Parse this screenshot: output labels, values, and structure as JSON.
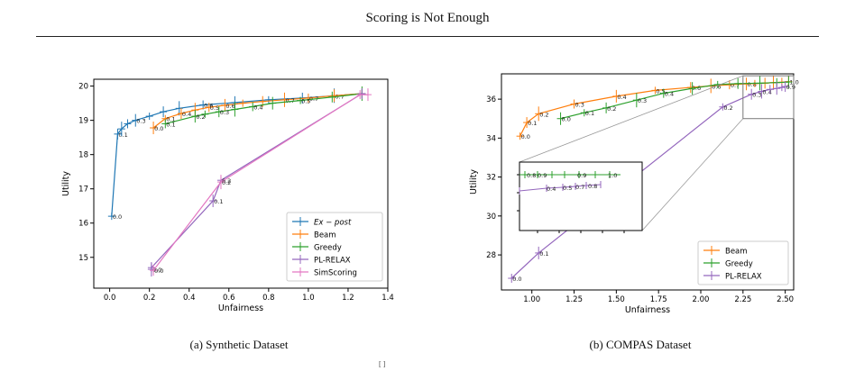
{
  "header": {
    "title": "Scoring is Not Enough"
  },
  "footer_fragment": "[        ]",
  "chart_data": [
    {
      "id": "synthetic",
      "type": "line",
      "caption": "(a) Synthetic Dataset",
      "xlabel": "Unfairness",
      "ylabel": "Utility",
      "xlim": [
        -0.08,
        1.4
      ],
      "ylim": [
        14.1,
        20.2
      ],
      "xticks": [
        0.0,
        0.2,
        0.4,
        0.6,
        0.8,
        1.0,
        1.2,
        1.4
      ],
      "yticks": [
        15,
        16,
        17,
        18,
        19,
        20
      ],
      "grid": false,
      "legend_position": "lower-right",
      "series": [
        {
          "name": "Ex − post",
          "color": "#1f77b4",
          "x": [
            0.01,
            0.04,
            0.06,
            0.09,
            0.13,
            0.2,
            0.27,
            0.35,
            0.47,
            0.63,
            0.8,
            0.97,
            1.13,
            1.27
          ],
          "y": [
            16.2,
            18.6,
            18.75,
            18.9,
            19.0,
            19.12,
            19.25,
            19.35,
            19.45,
            19.52,
            19.6,
            19.65,
            19.72,
            19.78
          ],
          "labels": [
            "0.0",
            "0.1",
            "",
            "",
            "0.3",
            "",
            "",
            "",
            "0.6",
            "",
            "",
            "",
            "0.7",
            ""
          ]
        },
        {
          "name": "Beam",
          "color": "#ff7f0e",
          "x": [
            0.22,
            0.28,
            0.36,
            0.43,
            0.5,
            0.58,
            0.67,
            0.77,
            0.88,
            1.0,
            1.13,
            1.27
          ],
          "y": [
            18.78,
            19.05,
            19.2,
            19.3,
            19.38,
            19.44,
            19.5,
            19.55,
            19.6,
            19.65,
            19.72,
            19.78
          ],
          "labels": [
            "0.0",
            "0.1",
            "0.4",
            "",
            "0.5",
            "0.6",
            "",
            "",
            "0.7",
            "0.7",
            "",
            ""
          ]
        },
        {
          "name": "Greedy",
          "color": "#2ca02c",
          "x": [
            0.28,
            0.43,
            0.48,
            0.55,
            0.63,
            0.72,
            0.82,
            0.96,
            1.12,
            1.27
          ],
          "y": [
            18.9,
            19.12,
            19.18,
            19.25,
            19.32,
            19.4,
            19.5,
            19.58,
            19.68,
            19.78
          ],
          "labels": [
            "0.1",
            "0.2",
            "",
            "0.3",
            "",
            "0.4",
            "",
            "0.5",
            "",
            ""
          ]
        },
        {
          "name": "PL-RELAX",
          "color": "#9467bd",
          "x": [
            0.21,
            0.21,
            0.52,
            0.56,
            1.27
          ],
          "y": [
            14.65,
            14.7,
            16.65,
            17.25,
            19.78
          ],
          "labels": [
            "0.0",
            "",
            "0.1",
            "0.2",
            ""
          ]
        },
        {
          "name": "SimScoring",
          "color": "#e377c2",
          "x": [
            0.22,
            0.56,
            1.26,
            1.3
          ],
          "y": [
            14.62,
            17.2,
            19.75,
            19.75
          ],
          "labels": [
            "0.0",
            "0.2",
            "",
            ""
          ]
        }
      ]
    },
    {
      "id": "compas",
      "type": "line",
      "caption": "(b) COMPAS Dataset",
      "xlabel": "Unfairness",
      "ylabel": "Utility",
      "xlim": [
        0.82,
        2.55
      ],
      "ylim": [
        26.2,
        37.3
      ],
      "xticks": [
        1.0,
        1.25,
        1.5,
        1.75,
        2.0,
        2.25,
        2.5
      ],
      "xtick_labels": [
        "1.00",
        "1.25",
        "1.50",
        "1.75",
        "2.00",
        "2.25",
        "2.50"
      ],
      "yticks": [
        28,
        30,
        32,
        34,
        36
      ],
      "grid": false,
      "legend_position": "lower-right",
      "series": [
        {
          "name": "Beam",
          "color": "#ff7f0e",
          "x": [
            0.93,
            0.97,
            1.04,
            1.25,
            1.5,
            1.73,
            1.94,
            2.06,
            2.17,
            2.27,
            2.32,
            2.38,
            2.43,
            2.48,
            2.52
          ],
          "y": [
            34.1,
            34.8,
            35.25,
            35.75,
            36.15,
            36.45,
            36.6,
            36.68,
            36.74,
            36.78,
            36.8,
            36.82,
            36.85,
            36.87,
            36.9
          ],
          "labels": [
            "0.0",
            "0.1",
            "0.2",
            "0.3",
            "0.4",
            "0.5",
            "0.6",
            "0.6",
            "0.7",
            "0.8",
            "",
            "",
            "",
            "",
            "1.0"
          ]
        },
        {
          "name": "Greedy",
          "color": "#2ca02c",
          "x": [
            1.17,
            1.31,
            1.44,
            1.62,
            1.78,
            1.95,
            2.1,
            2.22,
            2.35,
            2.45,
            2.52
          ],
          "y": [
            35.0,
            35.3,
            35.55,
            35.95,
            36.3,
            36.55,
            36.75,
            36.8,
            36.82,
            36.85,
            36.88
          ],
          "labels": [
            "0.0",
            "0.1",
            "0.2",
            "0.3",
            "0.4",
            "",
            "",
            "",
            "",
            "",
            ""
          ]
        },
        {
          "name": "PL-RELAX",
          "color": "#9467bd",
          "x": [
            0.88,
            1.04,
            2.13,
            2.3,
            2.36,
            2.41,
            2.45,
            2.48,
            2.5
          ],
          "y": [
            26.8,
            28.1,
            35.6,
            36.25,
            36.4,
            36.5,
            36.55,
            36.6,
            36.65
          ],
          "labels": [
            "0.0",
            "0.1",
            "0.2",
            "0.3",
            "0.4",
            "",
            "",
            "",
            "0.9"
          ]
        }
      ],
      "inset": {
        "region_x": [
          2.25,
          2.55
        ],
        "region_y": [
          35.0,
          37.2
        ],
        "series_labels": {
          "Greedy": [
            "0.8",
            "0.9",
            "0.9",
            "1.0"
          ],
          "PL-RELAX": [
            "0.4",
            "0.5",
            "0.7",
            "0.8"
          ]
        }
      }
    }
  ]
}
